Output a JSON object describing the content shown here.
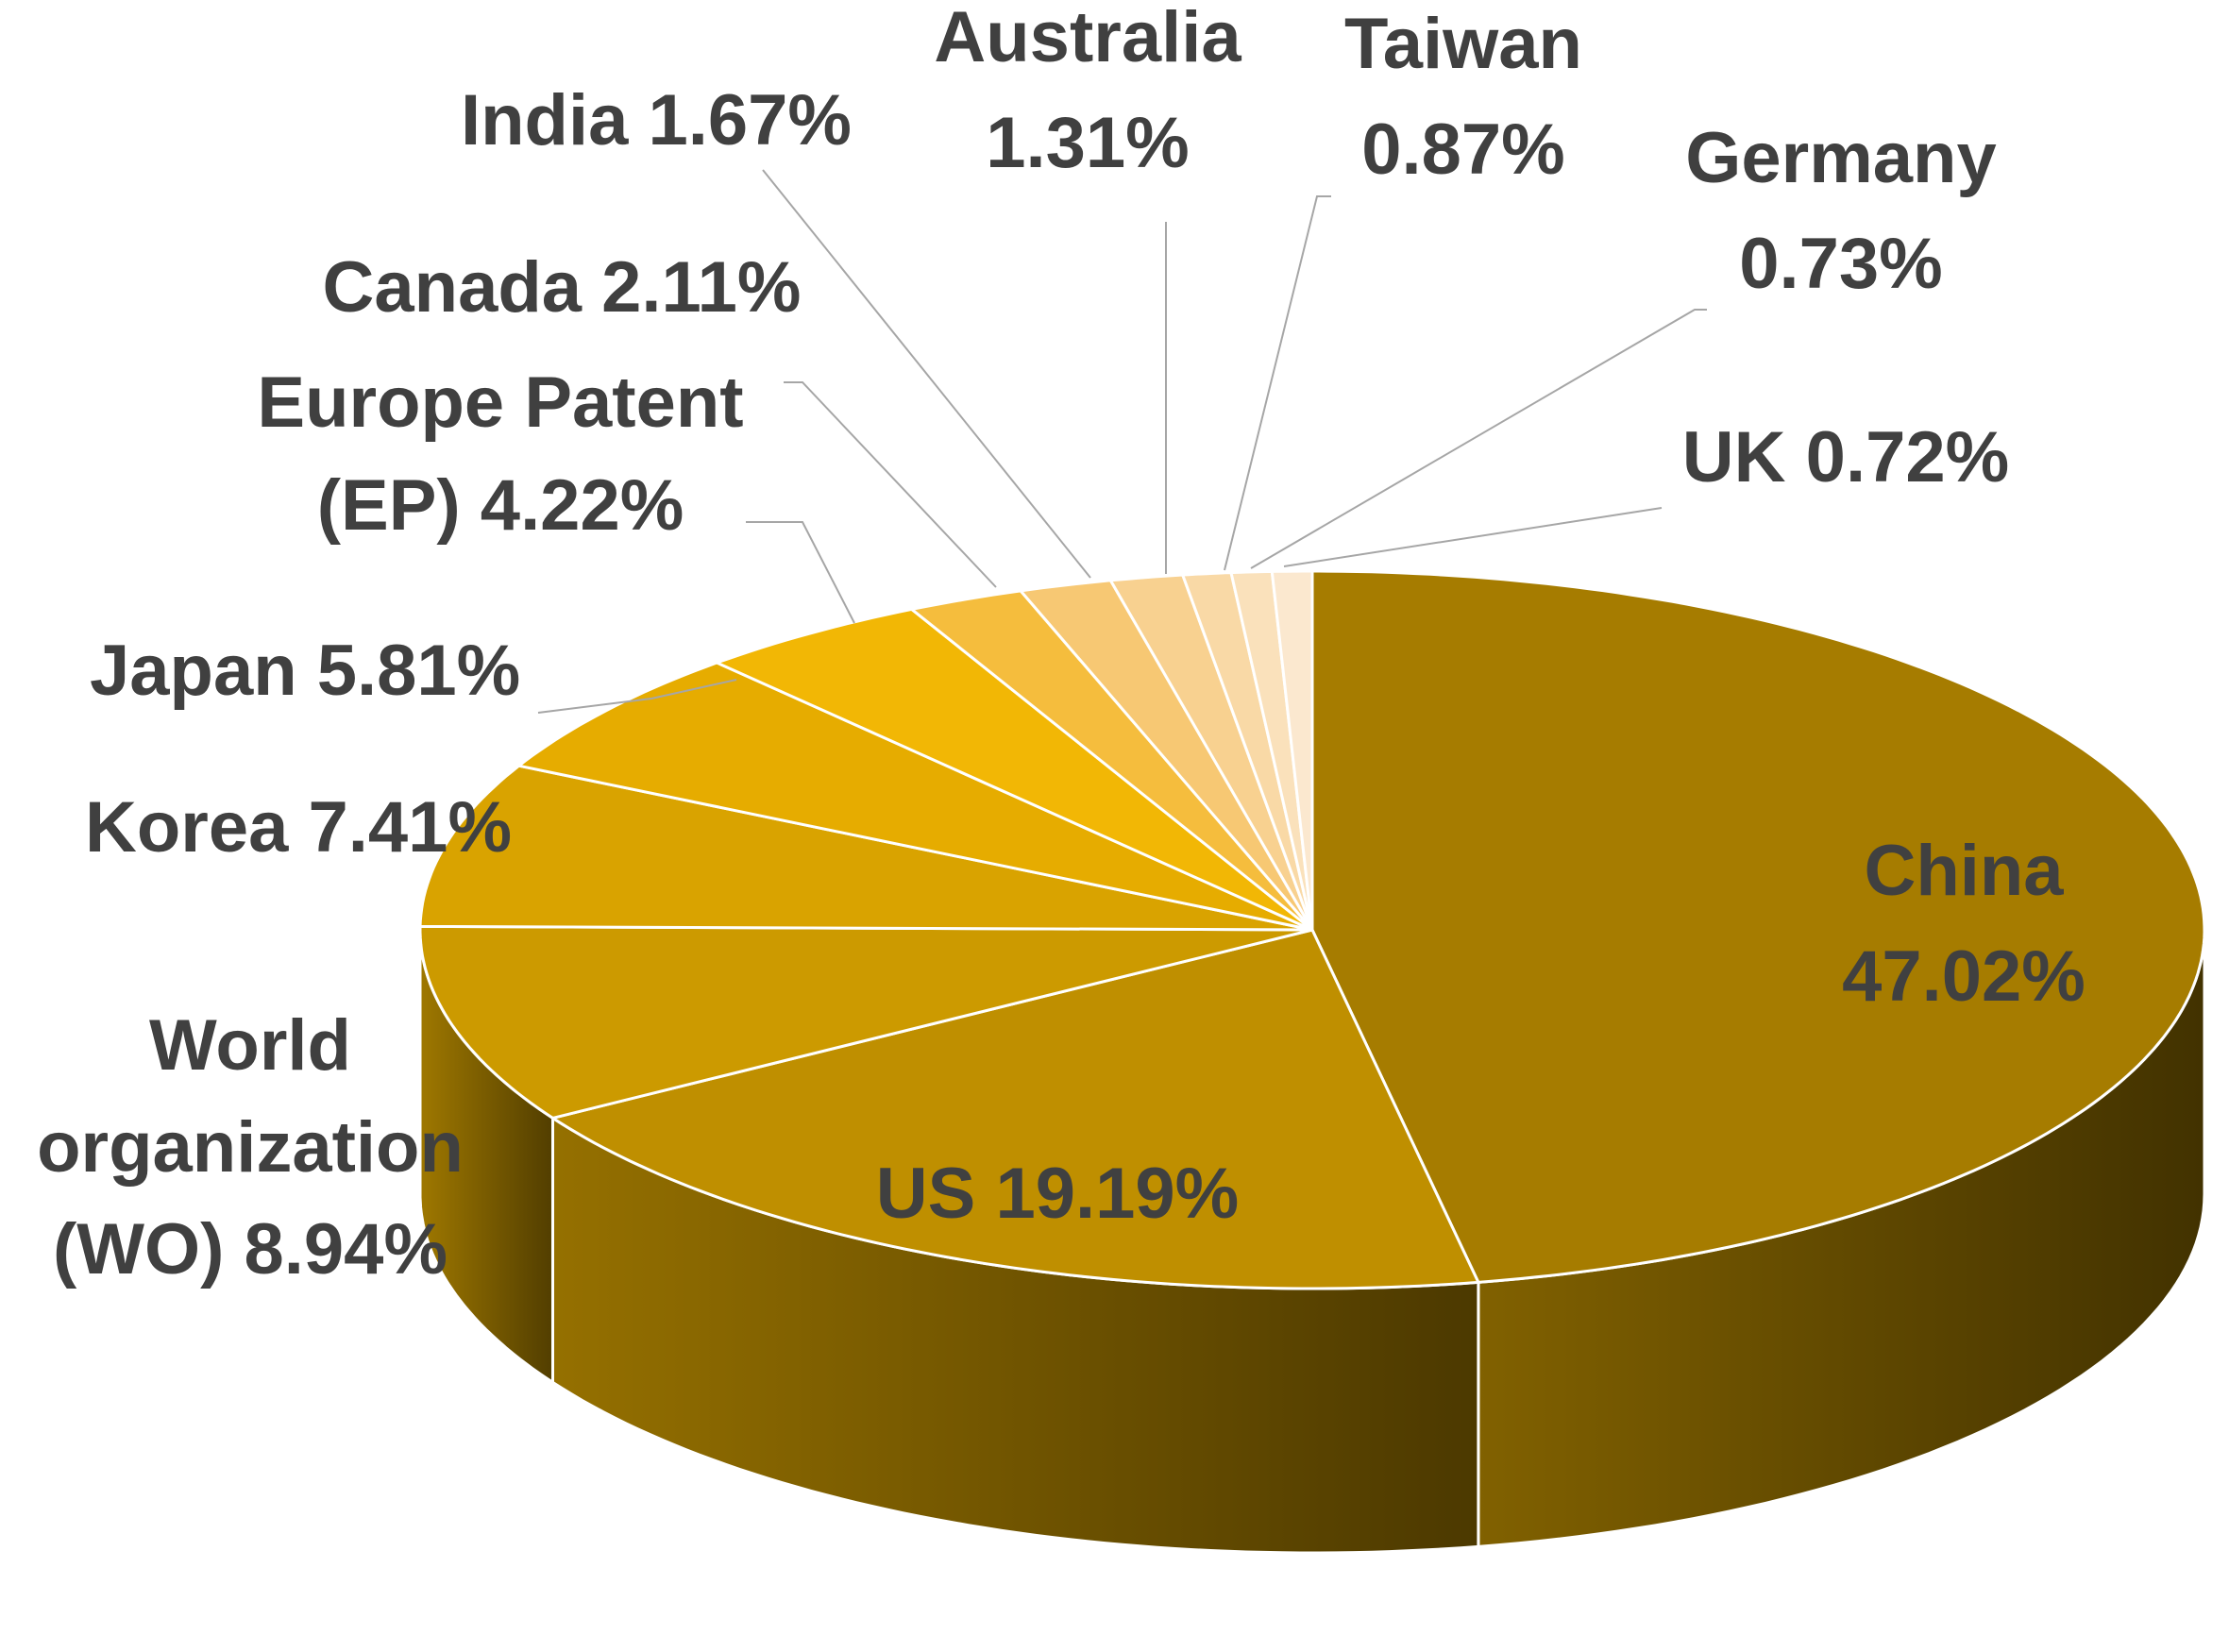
{
  "chart_data": {
    "type": "pie",
    "title": "",
    "style": "3d",
    "slices": [
      {
        "label": "China",
        "value": 47.02,
        "value_text": "47.02%",
        "color": "#a67c00"
      },
      {
        "label": "US",
        "value": 19.19,
        "value_text": "19.19%",
        "color": "#bf8f00"
      },
      {
        "label": "World organization (WO)",
        "value": 8.94,
        "value_text": "8.94%",
        "color": "#cc9a00"
      },
      {
        "label": "Korea",
        "value": 7.41,
        "value_text": "7.41%",
        "color": "#d9a300"
      },
      {
        "label": "Japan",
        "value": 5.81,
        "value_text": "5.81%",
        "color": "#e6ac00"
      },
      {
        "label": "Europe Patent (EP)",
        "value": 4.22,
        "value_text": "4.22%",
        "color": "#f2b705"
      },
      {
        "label": "Canada",
        "value": 2.11,
        "value_text": "2.11%",
        "color": "#f5bd3d"
      },
      {
        "label": "India",
        "value": 1.67,
        "value_text": "1.67%",
        "color": "#f7c873"
      },
      {
        "label": "Australia",
        "value": 1.31,
        "value_text": "1.31%",
        "color": "#f8d190"
      },
      {
        "label": "Taiwan",
        "value": 0.87,
        "value_text": "0.87%",
        "color": "#f9d9a6"
      },
      {
        "label": "Germany",
        "value": 0.73,
        "value_text": "0.73%",
        "color": "#fae1bb"
      },
      {
        "label": "UK",
        "value": 0.72,
        "value_text": "0.72%",
        "color": "#fbe8cf"
      }
    ],
    "labels": [
      {
        "lines": [
          "China",
          "47.02%"
        ]
      },
      {
        "lines": [
          "US 19.19%"
        ]
      },
      {
        "lines": [
          "World",
          "organization",
          "(WO) 8.94%"
        ]
      },
      {
        "lines": [
          "Korea 7.41%"
        ]
      },
      {
        "lines": [
          "Japan 5.81%"
        ]
      },
      {
        "lines": [
          "Europe Patent",
          "(EP) 4.22%"
        ]
      },
      {
        "lines": [
          "Canada 2.11%"
        ]
      },
      {
        "lines": [
          "India 1.67%"
        ]
      },
      {
        "lines": [
          "Australia",
          "1.31%"
        ]
      },
      {
        "lines": [
          "Taiwan",
          "0.87%"
        ]
      },
      {
        "lines": [
          "Germany",
          "0.73%"
        ]
      },
      {
        "lines": [
          "UK 0.72%"
        ]
      }
    ]
  }
}
